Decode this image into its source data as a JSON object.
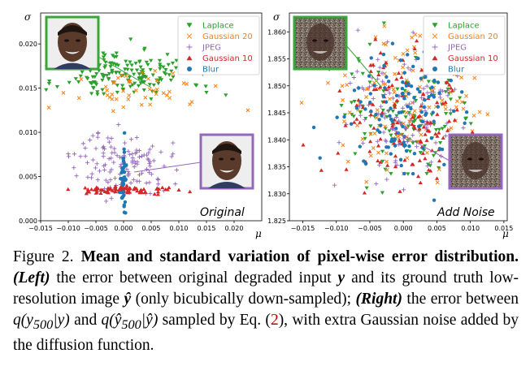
{
  "colors": {
    "Laplace": "#2ca02c",
    "Gaussian 20": "#ff7f0e",
    "JPEG": "#9467bd",
    "Gaussian 10": "#d62728",
    "Blur": "#1f77b4",
    "inset_green": "#3aa53a",
    "inset_purple": "#9467bd"
  },
  "chart_data": [
    {
      "type": "scatter",
      "panel_label": "Original",
      "xlabel": "μ",
      "ylabel": "σ",
      "xlim": [
        -0.015,
        0.025
      ],
      "ylim": [
        0.0,
        0.0235
      ],
      "xticks": [
        -0.015,
        -0.01,
        -0.005,
        0.0,
        0.005,
        0.01,
        0.015,
        0.02
      ],
      "xtick_labels": [
        "−0.015",
        "−0.010",
        "−0.005",
        "0.000",
        "0.005",
        "0.010",
        "0.015",
        "0.020"
      ],
      "yticks": [
        0.0,
        0.005,
        0.01,
        0.015,
        0.02
      ],
      "ytick_labels": [
        "0.000",
        "0.005",
        "0.010",
        "0.015",
        "0.020"
      ],
      "legend_position": "top-right",
      "series": [
        {
          "name": "Laplace",
          "marker": "triangle-down",
          "clusters": [
            {
              "mx": 0.0,
              "my": 0.0167,
              "sx": 0.006,
              "sy": 0.0014,
              "n": 170,
              "seed": 11
            }
          ],
          "points": [
            [
              -0.014,
              0.0148
            ],
            [
              0.015,
              0.0145
            ],
            [
              0.0185,
              0.0142
            ]
          ]
        },
        {
          "name": "Gaussian 20",
          "marker": "x",
          "clusters": [
            {
              "mx": 0.004,
              "my": 0.0147,
              "sx": 0.0055,
              "sy": 0.0009,
              "n": 45,
              "seed": 23
            }
          ],
          "points": [
            [
              -0.0135,
              0.0128
            ],
            [
              0.0225,
              0.0125
            ]
          ]
        },
        {
          "name": "JPEG",
          "marker": "plus",
          "clusters": [
            {
              "mx": 0.0,
              "my": 0.0065,
              "sx": 0.0042,
              "sy": 0.0018,
              "n": 130,
              "seed": 37
            }
          ],
          "points": []
        },
        {
          "name": "Gaussian 10",
          "marker": "triangle-up",
          "clusters": [
            {
              "mx": 0.0005,
              "my": 0.0035,
              "sx": 0.0045,
              "sy": 0.0002,
              "n": 80,
              "seed": 41
            }
          ],
          "points": [
            [
              0.01,
              0.0035
            ],
            [
              0.012,
              0.0033
            ]
          ]
        },
        {
          "name": "Blur",
          "marker": "circle",
          "clusters": [
            {
              "mx": 0.0,
              "my": 0.0045,
              "sx": 0.00025,
              "sy": 0.0025,
              "n": 45,
              "seed": 53
            }
          ],
          "points": []
        }
      ]
    },
    {
      "type": "scatter",
      "panel_label": "Add Noise",
      "xlabel": "μ",
      "ylabel": "σ",
      "xlim": [
        -0.017,
        0.0155
      ],
      "ylim": [
        1.825,
        1.8635
      ],
      "xticks": [
        -0.015,
        -0.01,
        -0.005,
        0.0,
        0.005,
        0.01,
        0.015
      ],
      "xtick_labels": [
        "−0.015",
        "−0.010",
        "−0.005",
        "0.000",
        "0.005",
        "0.010",
        "0.015"
      ],
      "yticks": [
        1.825,
        1.83,
        1.835,
        1.84,
        1.845,
        1.85,
        1.855,
        1.86
      ],
      "ytick_labels": [
        "1.825",
        "1.830",
        "1.835",
        "1.840",
        "1.845",
        "1.850",
        "1.855",
        "1.860"
      ],
      "legend_position": "top-right",
      "series": [
        {
          "name": "Laplace",
          "marker": "triangle-down",
          "clusters": [
            {
              "mx": 0.0,
              "my": 1.8455,
              "sx": 0.005,
              "sy": 0.0065,
              "n": 130,
              "seed": 61
            }
          ],
          "points": []
        },
        {
          "name": "Gaussian 20",
          "marker": "x",
          "clusters": [
            {
              "mx": 0.0,
              "my": 1.846,
              "sx": 0.0052,
              "sy": 0.0068,
              "n": 130,
              "seed": 67
            }
          ],
          "points": []
        },
        {
          "name": "JPEG",
          "marker": "plus",
          "clusters": [
            {
              "mx": 0.0,
              "my": 1.845,
              "sx": 0.0048,
              "sy": 0.0065,
              "n": 120,
              "seed": 71
            }
          ],
          "points": []
        },
        {
          "name": "Gaussian 10",
          "marker": "triangle-up",
          "clusters": [
            {
              "mx": 0.0,
              "my": 1.8455,
              "sx": 0.0048,
              "sy": 0.0062,
              "n": 130,
              "seed": 79
            }
          ],
          "points": []
        },
        {
          "name": "Blur",
          "marker": "circle",
          "clusters": [
            {
              "mx": 0.0,
              "my": 1.8455,
              "sx": 0.0048,
              "sy": 0.0062,
              "n": 120,
              "seed": 83
            }
          ],
          "points": []
        }
      ]
    }
  ],
  "caption": {
    "fig_num": "Figure 2.",
    "bold_title": "Mean and standard variation of pixel-wise error distribution.",
    "left_label": "(Left)",
    "text1": "the error between original degraded input",
    "var_y": "y",
    "text2": "and its ground truth low-resolution image",
    "var_yhat": "ŷ",
    "text3": "(only bicubically down-sampled);",
    "right_label": "(Right)",
    "text4": "the error between",
    "q1": "q(y",
    "sub500": "500",
    "q1b": "|y)",
    "and": "and",
    "q2": "q(ŷ",
    "q2b": "|ŷ)",
    "text5": "sampled by Eq. (",
    "eqref": "2",
    "text6": "), with extra Gaussian noise added by the diffusion function."
  }
}
